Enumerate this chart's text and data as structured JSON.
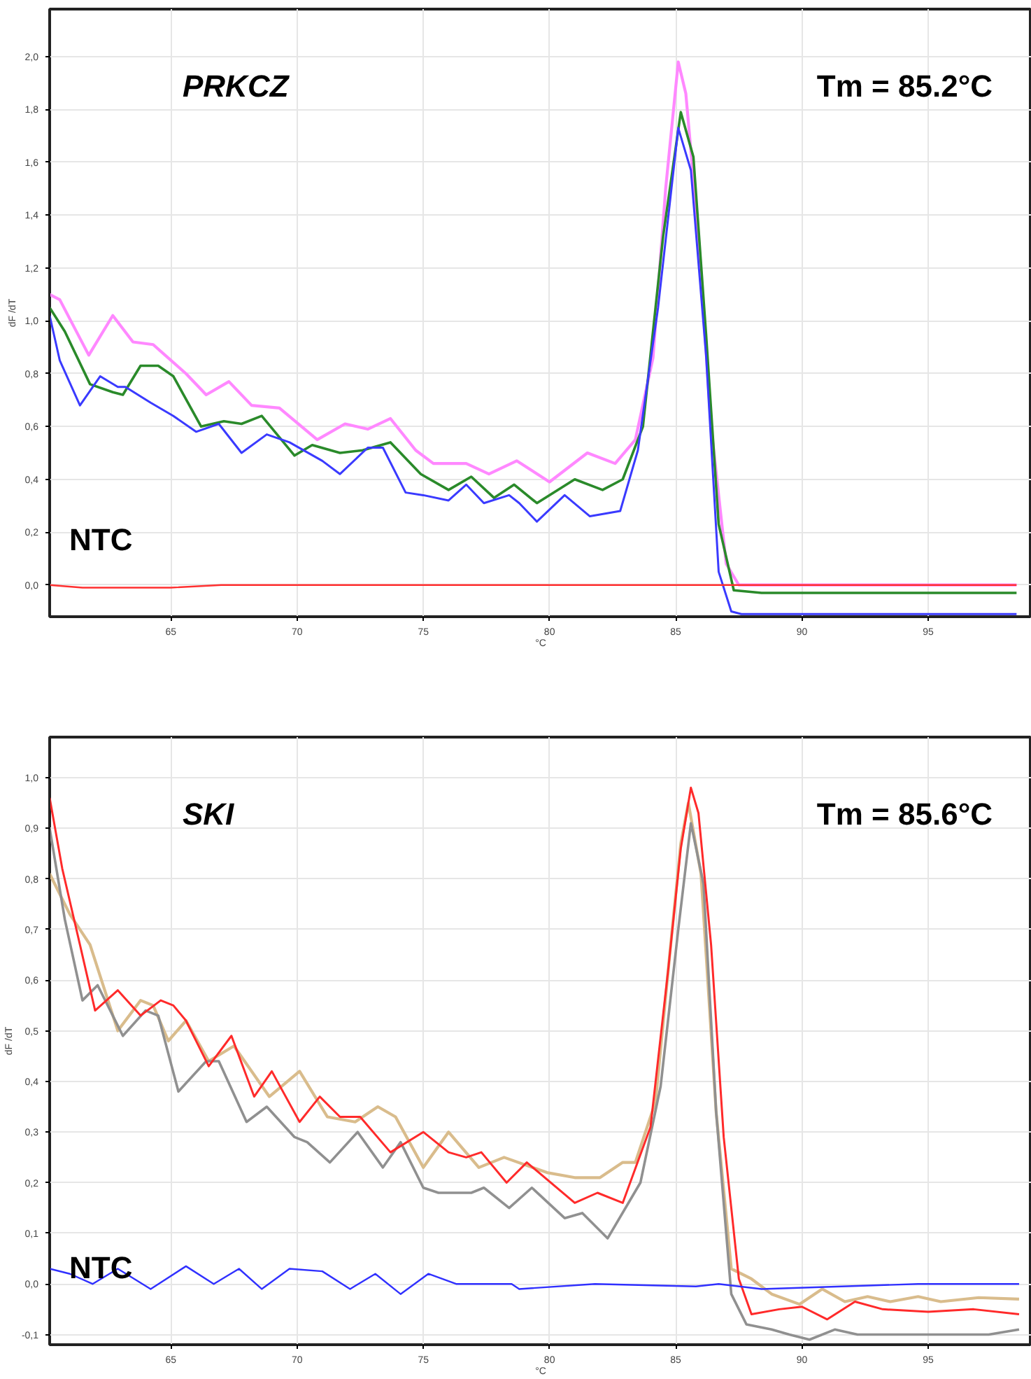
{
  "chart_data": [
    {
      "type": "line",
      "xlabel": "°C",
      "ylabel": "dF /dT",
      "annotations": [
        "PRKCZ",
        "Tm = 85.2°C",
        "NTC"
      ],
      "xlim": [
        60.2,
        99.1
      ],
      "ylim": [
        -0.12,
        2.18
      ],
      "xticks": [
        65,
        70,
        75,
        80,
        85,
        90,
        95
      ],
      "yticks": [
        {
          "value": 0.0,
          "label": "0,0"
        },
        {
          "value": 0.2,
          "label": "0,2"
        },
        {
          "value": 0.4,
          "label": "0,4"
        },
        {
          "value": 0.6,
          "label": "0,6"
        },
        {
          "value": 0.8,
          "label": "0,8"
        },
        {
          "value": 1.0,
          "label": "1,0"
        },
        {
          "value": 1.2,
          "label": "1,2"
        },
        {
          "value": 1.4,
          "label": "1,4"
        },
        {
          "value": 1.6,
          "label": "1,6"
        },
        {
          "value": 1.8,
          "label": "1,8"
        },
        {
          "value": 2.0,
          "label": "2,0"
        }
      ],
      "grid": true,
      "marker": "none",
      "line_style": "solid",
      "series": [
        {
          "color": "#ff88ff",
          "x": [
            60.2,
            60.6,
            61.75,
            62.7,
            63.5,
            64.3,
            65.6,
            66.4,
            67.3,
            68.2,
            69.3,
            70.8,
            71.9,
            72.8,
            73.7,
            74.7,
            75.4,
            76.7,
            77.6,
            78.7,
            80.0,
            81.5,
            82.6,
            83.4,
            84.1,
            84.6,
            85.1,
            85.4,
            85.9,
            86.4,
            87.0,
            87.5,
            98.5
          ],
          "values": [
            1.1,
            1.08,
            0.87,
            1.02,
            0.92,
            0.91,
            0.8,
            0.72,
            0.77,
            0.68,
            0.67,
            0.55,
            0.61,
            0.59,
            0.63,
            0.51,
            0.46,
            0.46,
            0.42,
            0.47,
            0.39,
            0.5,
            0.46,
            0.55,
            0.86,
            1.5,
            1.98,
            1.86,
            1.32,
            0.6,
            0.08,
            0.0,
            0.0
          ]
        },
        {
          "color": "#2a8a2a",
          "x": [
            60.2,
            60.8,
            61.8,
            62.7,
            63.1,
            63.8,
            64.5,
            65.1,
            66.2,
            67.1,
            67.8,
            68.6,
            69.9,
            70.6,
            71.7,
            72.6,
            73.7,
            74.9,
            76.0,
            76.9,
            77.8,
            78.6,
            79.5,
            81.0,
            82.1,
            82.9,
            83.7,
            84.5,
            85.2,
            85.7,
            86.2,
            86.7,
            87.3,
            88.4,
            98.5
          ],
          "values": [
            1.05,
            0.96,
            0.76,
            0.73,
            0.72,
            0.83,
            0.83,
            0.79,
            0.6,
            0.62,
            0.61,
            0.64,
            0.49,
            0.53,
            0.5,
            0.51,
            0.54,
            0.42,
            0.36,
            0.41,
            0.33,
            0.38,
            0.31,
            0.4,
            0.36,
            0.4,
            0.6,
            1.32,
            1.79,
            1.62,
            0.95,
            0.23,
            -0.02,
            -0.03,
            -0.03
          ]
        },
        {
          "color": "#3a3aff",
          "x": [
            60.2,
            60.6,
            61.4,
            62.2,
            62.9,
            63.2,
            64.2,
            65.1,
            66.0,
            66.9,
            67.8,
            68.8,
            69.7,
            71.0,
            71.7,
            72.8,
            73.4,
            74.3,
            75.0,
            76.0,
            76.7,
            77.4,
            78.4,
            78.8,
            79.5,
            80.6,
            81.6,
            82.8,
            83.5,
            84.3,
            85.1,
            85.6,
            86.2,
            86.7,
            87.2,
            87.6,
            98.5
          ],
          "values": [
            1.02,
            0.85,
            0.68,
            0.79,
            0.75,
            0.75,
            0.69,
            0.64,
            0.58,
            0.61,
            0.5,
            0.57,
            0.54,
            0.47,
            0.42,
            0.52,
            0.52,
            0.35,
            0.34,
            0.32,
            0.38,
            0.31,
            0.34,
            0.31,
            0.24,
            0.34,
            0.26,
            0.28,
            0.51,
            1.05,
            1.73,
            1.57,
            0.87,
            0.05,
            -0.1,
            -0.11,
            -0.11
          ]
        },
        {
          "color": "#ff3030",
          "x": [
            60.2,
            61.5,
            65.0,
            67.0,
            70.0,
            75.0,
            98.5
          ],
          "values": [
            0.0,
            -0.01,
            -0.01,
            0.0,
            0.0,
            0.0,
            0.0
          ]
        }
      ]
    },
    {
      "type": "line",
      "xlabel": "°C",
      "ylabel": "dF /dT",
      "annotations": [
        "SKI",
        "Tm = 85.6°C",
        "NTC"
      ],
      "xlim": [
        60.2,
        99.1
      ],
      "ylim": [
        -0.12,
        1.08
      ],
      "xticks": [
        65,
        70,
        75,
        80,
        85,
        90,
        95
      ],
      "yticks": [
        {
          "value": -0.1,
          "label": "-0,1"
        },
        {
          "value": 0.0,
          "label": "0,0"
        },
        {
          "value": 0.1,
          "label": "0,1"
        },
        {
          "value": 0.2,
          "label": "0,2"
        },
        {
          "value": 0.3,
          "label": "0,3"
        },
        {
          "value": 0.4,
          "label": "0,4"
        },
        {
          "value": 0.5,
          "label": "0,5"
        },
        {
          "value": 0.6,
          "label": "0,6"
        },
        {
          "value": 0.7,
          "label": "0,7"
        },
        {
          "value": 0.8,
          "label": "0,8"
        },
        {
          "value": 0.9,
          "label": "0,9"
        },
        {
          "value": 1.0,
          "label": "1,0"
        }
      ],
      "grid": true,
      "marker": "none",
      "line_style": "solid",
      "series": [
        {
          "color": "#d9bc8c",
          "x": [
            60.2,
            61.0,
            61.8,
            62.9,
            63.8,
            64.3,
            64.9,
            65.6,
            66.5,
            67.5,
            68.9,
            70.1,
            71.2,
            72.3,
            73.2,
            73.9,
            75.0,
            76.0,
            77.2,
            78.2,
            79.9,
            81.0,
            82.0,
            82.9,
            83.4,
            84.2,
            84.8,
            85.2,
            85.5,
            86.0,
            86.6,
            87.2,
            88.0,
            88.8,
            89.9,
            90.8,
            91.7,
            92.6,
            93.5,
            94.6,
            95.5,
            97.0,
            98.6
          ],
          "values": [
            0.81,
            0.73,
            0.67,
            0.5,
            0.56,
            0.55,
            0.48,
            0.52,
            0.44,
            0.47,
            0.37,
            0.42,
            0.33,
            0.32,
            0.35,
            0.33,
            0.23,
            0.3,
            0.23,
            0.25,
            0.22,
            0.21,
            0.21,
            0.24,
            0.24,
            0.36,
            0.67,
            0.87,
            0.95,
            0.81,
            0.34,
            0.03,
            0.01,
            -0.02,
            -0.04,
            -0.01,
            -0.035,
            -0.025,
            -0.035,
            -0.025,
            -0.035,
            -0.027,
            -0.03
          ]
        },
        {
          "color": "#909090",
          "x": [
            60.2,
            60.8,
            61.5,
            62.1,
            63.1,
            64.0,
            64.5,
            65.3,
            66.4,
            66.9,
            68.0,
            68.8,
            69.9,
            70.4,
            71.3,
            72.4,
            73.4,
            74.1,
            75.0,
            75.6,
            76.3,
            76.9,
            77.4,
            78.4,
            79.3,
            80.6,
            81.3,
            82.3,
            83.6,
            84.4,
            85.1,
            85.6,
            86.1,
            86.6,
            87.2,
            87.8,
            88.8,
            89.5,
            90.3,
            91.3,
            92.2,
            93.7,
            95.5,
            97.4,
            98.6
          ],
          "values": [
            0.9,
            0.72,
            0.56,
            0.59,
            0.49,
            0.54,
            0.53,
            0.38,
            0.44,
            0.44,
            0.32,
            0.35,
            0.29,
            0.28,
            0.24,
            0.3,
            0.23,
            0.28,
            0.19,
            0.18,
            0.18,
            0.18,
            0.19,
            0.15,
            0.19,
            0.13,
            0.14,
            0.09,
            0.2,
            0.39,
            0.7,
            0.91,
            0.79,
            0.34,
            -0.02,
            -0.08,
            -0.09,
            -0.1,
            -0.11,
            -0.09,
            -0.1,
            -0.1,
            -0.1,
            -0.1,
            -0.09
          ]
        },
        {
          "color": "#ff2a2a",
          "x": [
            60.2,
            60.7,
            61.4,
            62.0,
            62.9,
            63.8,
            64.6,
            65.1,
            65.6,
            66.5,
            67.4,
            68.3,
            69.0,
            70.1,
            70.9,
            71.7,
            72.5,
            73.7,
            75.0,
            76.0,
            76.7,
            77.3,
            78.3,
            79.1,
            81.0,
            81.9,
            82.9,
            84.0,
            84.7,
            85.2,
            85.6,
            85.9,
            86.4,
            86.9,
            87.5,
            88.0,
            89.1,
            90.0,
            91.0,
            92.1,
            93.2,
            95.0,
            96.8,
            98.6
          ],
          "values": [
            0.96,
            0.82,
            0.67,
            0.54,
            0.58,
            0.53,
            0.56,
            0.55,
            0.52,
            0.43,
            0.49,
            0.37,
            0.42,
            0.32,
            0.37,
            0.33,
            0.33,
            0.26,
            0.3,
            0.26,
            0.25,
            0.26,
            0.2,
            0.24,
            0.16,
            0.18,
            0.16,
            0.31,
            0.62,
            0.86,
            0.98,
            0.93,
            0.67,
            0.29,
            0.01,
            -0.06,
            -0.05,
            -0.045,
            -0.07,
            -0.035,
            -0.05,
            -0.055,
            -0.05,
            -0.06
          ]
        },
        {
          "color": "#3030ff",
          "x": [
            60.2,
            61.0,
            61.9,
            62.9,
            64.2,
            65.6,
            66.7,
            67.7,
            68.6,
            69.7,
            71.0,
            72.1,
            73.1,
            74.1,
            75.2,
            76.3,
            77.6,
            78.5,
            78.8,
            81.8,
            85.8,
            86.7,
            88.4,
            94.6,
            98.6
          ],
          "values": [
            0.03,
            0.02,
            0.0,
            0.03,
            -0.01,
            0.035,
            0.0,
            0.03,
            -0.01,
            0.03,
            0.025,
            -0.01,
            0.02,
            -0.02,
            0.02,
            0.0,
            0.0,
            0.0,
            -0.01,
            0.0,
            -0.005,
            0.0,
            -0.01,
            0.0,
            0.0
          ]
        }
      ]
    }
  ]
}
